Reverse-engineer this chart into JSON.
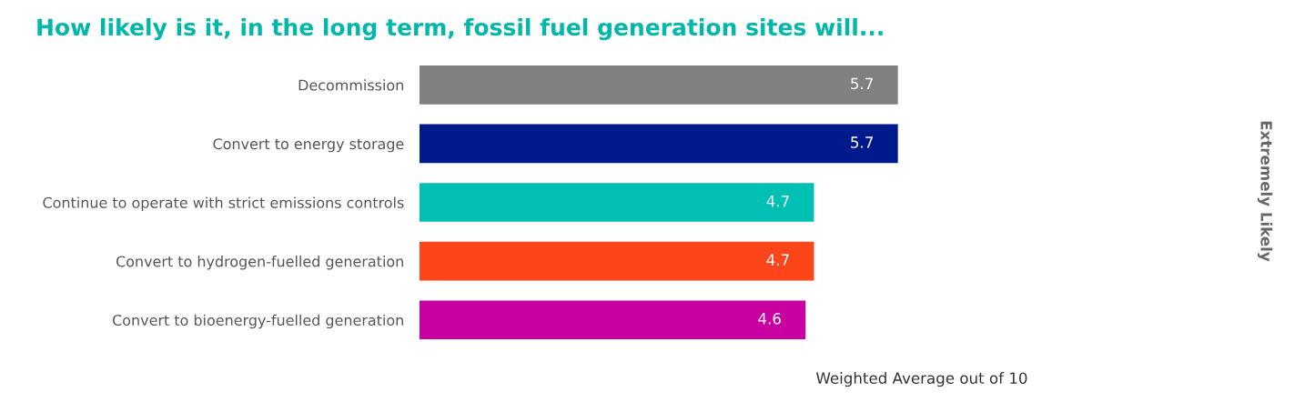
{
  "chart_data": {
    "type": "bar",
    "orientation": "horizontal",
    "title": "How likely is it, in the long term, fossil fuel generation sites will...",
    "xlabel": "Weighted Average out of 10",
    "annotations": [
      "Extremely Likely"
    ],
    "categories": [
      "Decommission",
      "Convert to energy storage",
      "Continue to operate with strict emissions controls",
      "Convert to hydrogen-fuelled generation",
      "Convert to bioenergy-fuelled generation"
    ],
    "values": [
      5.7,
      5.7,
      4.7,
      4.7,
      4.6
    ],
    "colors": [
      "#808080",
      "#001a8c",
      "#00bfb3",
      "#fc4619",
      "#c800a1"
    ],
    "data_labels": true,
    "tick_labels": "y"
  }
}
